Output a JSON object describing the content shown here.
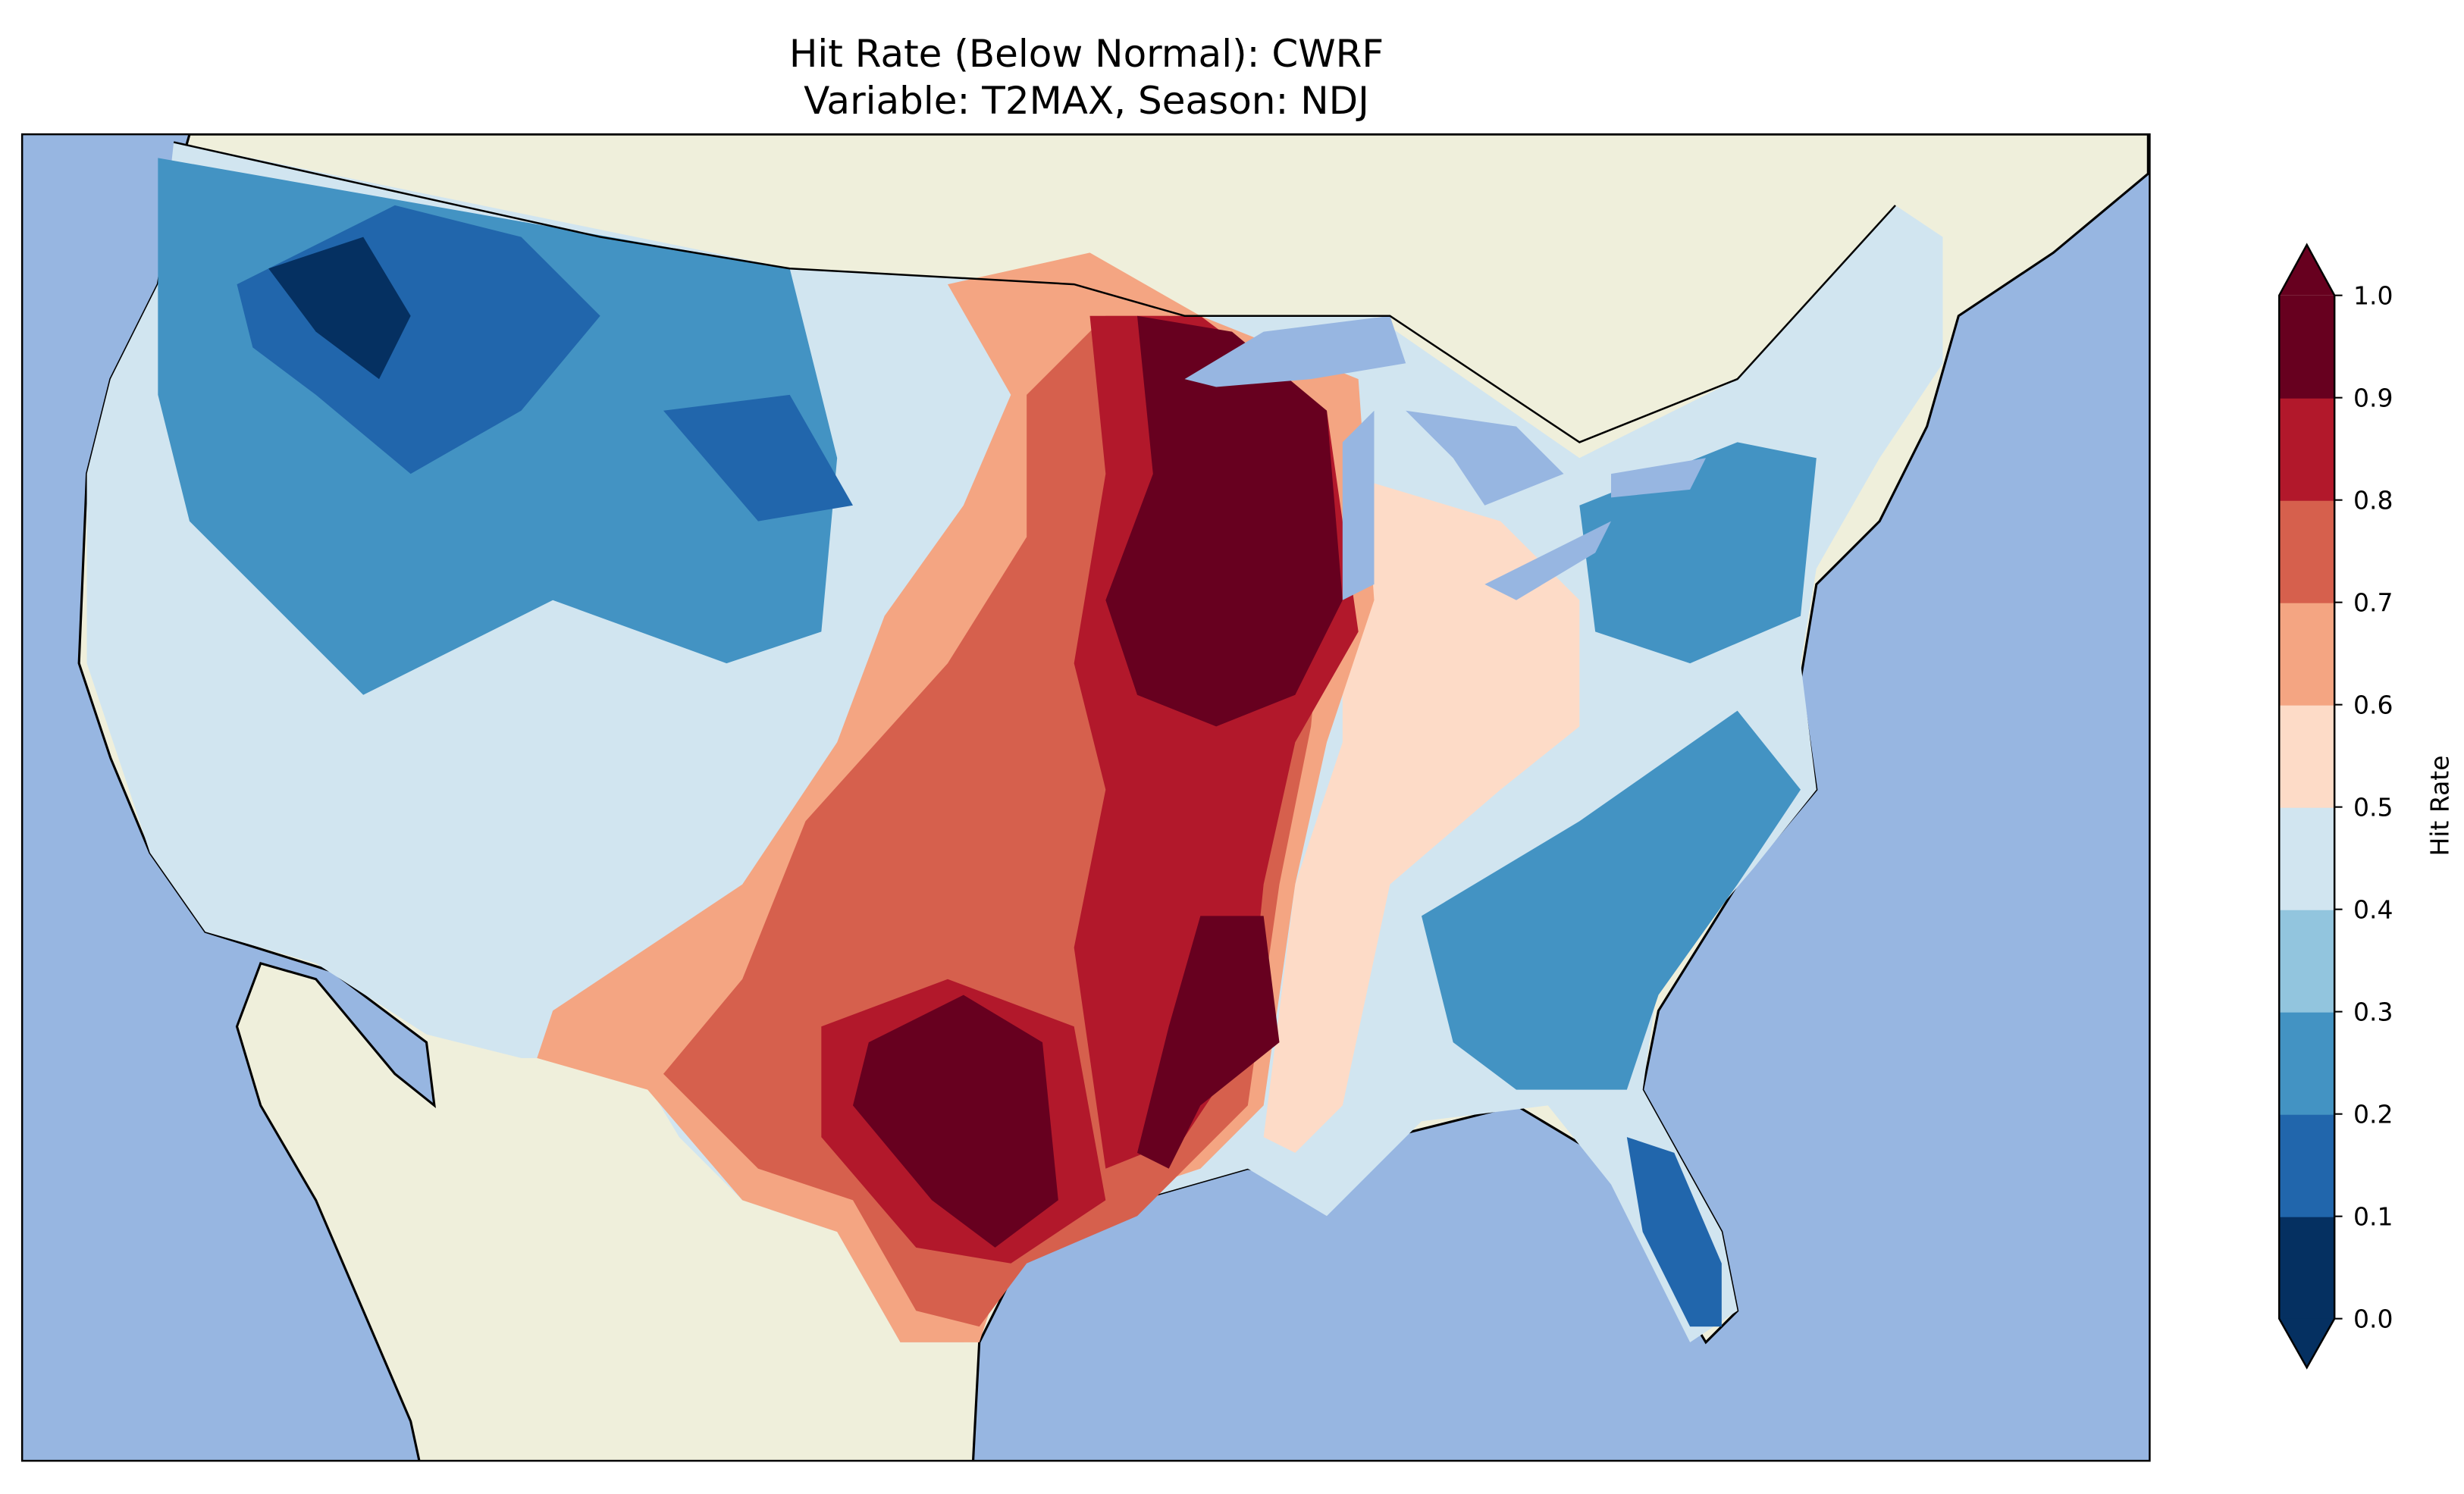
{
  "title": {
    "line1": "Hit Rate (Below Normal): CWRF",
    "line2": "Variable: T2MAX, Season: NDJ"
  },
  "colors": {
    "ocean": "#97b6e1",
    "land": "#efefdb"
  },
  "chart_data": {
    "type": "heatmap",
    "title": "Hit Rate (Below Normal): CWRF — Variable: T2MAX, Season: NDJ",
    "colorbar": {
      "label": "Hit Rate",
      "ticks": [
        "0.0",
        "0.1",
        "0.2",
        "0.3",
        "0.4",
        "0.5",
        "0.6",
        "0.7",
        "0.8",
        "0.9",
        "1.0"
      ],
      "range": [
        0.0,
        1.0
      ],
      "extend": "both",
      "bins": [
        {
          "range": [
            0.0,
            0.1
          ],
          "color": "#053061"
        },
        {
          "range": [
            0.1,
            0.2
          ],
          "color": "#2166ac"
        },
        {
          "range": [
            0.2,
            0.3
          ],
          "color": "#4393c3"
        },
        {
          "range": [
            0.3,
            0.4
          ],
          "color": "#92c5de"
        },
        {
          "range": [
            0.4,
            0.5
          ],
          "color": "#d1e5f0"
        },
        {
          "range": [
            0.5,
            0.6
          ],
          "color": "#fddbc7"
        },
        {
          "range": [
            0.6,
            0.7
          ],
          "color": "#f4a582"
        },
        {
          "range": [
            0.7,
            0.8
          ],
          "color": "#d6604d"
        },
        {
          "range": [
            0.8,
            0.9
          ],
          "color": "#b2182b"
        },
        {
          "range": [
            0.9,
            1.0
          ],
          "color": "#67001f"
        }
      ]
    },
    "regions_summary": [
      {
        "region": "Northwest / Northern Rockies",
        "level": "0.0-0.3"
      },
      {
        "region": "Upper Midwest (MN/WI/IA)",
        "level": "0.9-1.0"
      },
      {
        "region": "Central Texas",
        "level": "0.9-1.0"
      },
      {
        "region": "Southern Plains",
        "level": "0.7-0.8"
      },
      {
        "region": "Southeast / Florida",
        "level": "0.1-0.3"
      }
    ]
  }
}
